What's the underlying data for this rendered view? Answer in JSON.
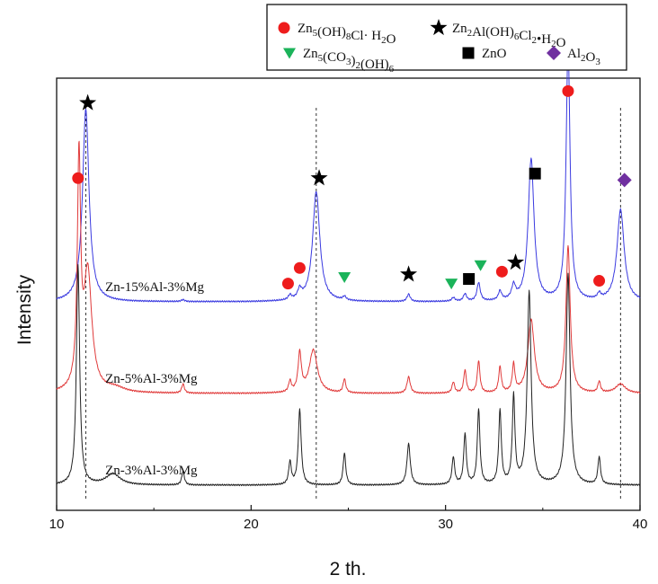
{
  "chart_data": {
    "type": "line",
    "title": "",
    "xlabel": "2 th.",
    "ylabel": "Intensity",
    "xlim": [
      10,
      40
    ],
    "xticks": [
      10,
      20,
      30,
      40
    ],
    "grid": false,
    "legend_position": "top-right",
    "legend": [
      {
        "marker": "circle",
        "color": "#ee1c1c",
        "parts": [
          [
            "Zn",
            ""
          ],
          [
            "5",
            "sub"
          ],
          [
            "(OH)",
            ""
          ],
          [
            "8",
            "sub"
          ],
          [
            "Cl·  H",
            ""
          ],
          [
            "2",
            "sub"
          ],
          [
            "O",
            ""
          ]
        ]
      },
      {
        "marker": "star",
        "color": "#000000",
        "parts": [
          [
            "Zn",
            ""
          ],
          [
            "2",
            "sub"
          ],
          [
            "Al(OH)",
            ""
          ],
          [
            "6",
            "sub"
          ],
          [
            "Cl",
            ""
          ],
          [
            "2",
            "sub"
          ],
          [
            "•H",
            ""
          ],
          [
            "2",
            "sub"
          ],
          [
            "O",
            ""
          ]
        ]
      },
      {
        "marker": "triangle",
        "color": "#1bb35a",
        "parts": [
          [
            "Zn",
            ""
          ],
          [
            "5",
            "sub"
          ],
          [
            "(CO",
            ""
          ],
          [
            "3",
            "sub"
          ],
          [
            ")",
            ""
          ],
          [
            "2",
            "sub"
          ],
          [
            "(OH)",
            ""
          ],
          [
            "6",
            "sub"
          ]
        ]
      },
      {
        "marker": "square",
        "color": "#000000",
        "parts": [
          [
            "ZnO",
            ""
          ]
        ]
      },
      {
        "marker": "diamond",
        "color": "#7030a0",
        "parts": [
          [
            "Al",
            ""
          ],
          [
            "2",
            "sub"
          ],
          [
            "O",
            ""
          ],
          [
            "3",
            "sub"
          ]
        ]
      }
    ],
    "series": [
      {
        "name": "Zn-15%Al-3%Mg",
        "color": "#3a3ae0",
        "baseline": 1.0,
        "wiggle": 0.006,
        "peaks": [
          [
            11.5,
            2.1,
            0.2
          ],
          [
            16.5,
            0.02,
            0.1
          ],
          [
            22.0,
            0.05,
            0.1
          ],
          [
            22.5,
            0.1,
            0.12
          ],
          [
            23.35,
            1.2,
            0.22
          ],
          [
            24.8,
            0.04,
            0.1
          ],
          [
            28.1,
            0.08,
            0.1
          ],
          [
            30.4,
            0.04,
            0.1
          ],
          [
            31.0,
            0.08,
            0.1
          ],
          [
            31.7,
            0.2,
            0.1
          ],
          [
            32.8,
            0.1,
            0.1
          ],
          [
            33.5,
            0.15,
            0.12
          ],
          [
            34.4,
            1.55,
            0.18
          ],
          [
            36.3,
            2.8,
            0.12
          ],
          [
            37.9,
            0.06,
            0.1
          ],
          [
            39.0,
            1.0,
            0.22
          ]
        ]
      },
      {
        "name": "Zn-5%Al-3%Mg",
        "color": "#e03a3a",
        "baseline": 0.0,
        "wiggle": 0.006,
        "peaks": [
          [
            11.15,
            2.45,
            0.1
          ],
          [
            11.6,
            1.3,
            0.25
          ],
          [
            13.0,
            0.05,
            0.6
          ],
          [
            16.5,
            0.1,
            0.08
          ],
          [
            22.0,
            0.12,
            0.08
          ],
          [
            22.5,
            0.42,
            0.1
          ],
          [
            23.2,
            0.47,
            0.25
          ],
          [
            24.8,
            0.15,
            0.08
          ],
          [
            28.1,
            0.18,
            0.1
          ],
          [
            30.4,
            0.12,
            0.08
          ],
          [
            31.0,
            0.25,
            0.08
          ],
          [
            31.7,
            0.35,
            0.08
          ],
          [
            32.8,
            0.28,
            0.08
          ],
          [
            33.5,
            0.3,
            0.08
          ],
          [
            34.4,
            0.8,
            0.2
          ],
          [
            36.3,
            1.6,
            0.13
          ],
          [
            37.9,
            0.12,
            0.08
          ],
          [
            39.0,
            0.1,
            0.3
          ]
        ]
      },
      {
        "name": "Zn-3%Al-3%Mg",
        "color": "#222222",
        "baseline": -1.0,
        "wiggle": 0.006,
        "peaks": [
          [
            11.1,
            2.4,
            0.1
          ],
          [
            12.9,
            0.12,
            0.45
          ],
          [
            16.5,
            0.15,
            0.08
          ],
          [
            22.0,
            0.25,
            0.08
          ],
          [
            22.5,
            0.82,
            0.09
          ],
          [
            24.8,
            0.35,
            0.08
          ],
          [
            28.1,
            0.45,
            0.1
          ],
          [
            30.4,
            0.3,
            0.08
          ],
          [
            31.0,
            0.55,
            0.08
          ],
          [
            31.7,
            0.82,
            0.08
          ],
          [
            32.8,
            0.8,
            0.08
          ],
          [
            33.5,
            0.95,
            0.08
          ],
          [
            34.3,
            2.1,
            0.12
          ],
          [
            36.3,
            2.3,
            0.12
          ],
          [
            37.9,
            0.3,
            0.08
          ]
        ]
      }
    ],
    "phase_markers": [
      {
        "phase": "circle",
        "x": 11.1,
        "level": 2.35
      },
      {
        "phase": "star",
        "x": 11.6,
        "level": 3.17
      },
      {
        "phase": "star",
        "x": 23.5,
        "level": 2.35
      },
      {
        "phase": "circle",
        "x": 21.9,
        "level": 1.2
      },
      {
        "phase": "circle",
        "x": 22.5,
        "level": 1.37
      },
      {
        "phase": "triangle",
        "x": 24.8,
        "level": 1.27
      },
      {
        "phase": "star",
        "x": 28.1,
        "level": 1.3
      },
      {
        "phase": "triangle",
        "x": 30.3,
        "level": 1.2
      },
      {
        "phase": "square",
        "x": 31.2,
        "level": 1.25
      },
      {
        "phase": "triangle",
        "x": 31.8,
        "level": 1.4
      },
      {
        "phase": "star",
        "x": 33.6,
        "level": 1.43
      },
      {
        "phase": "circle",
        "x": 32.9,
        "level": 1.33
      },
      {
        "phase": "square",
        "x": 34.6,
        "level": 2.4
      },
      {
        "phase": "circle",
        "x": 36.3,
        "level": 3.3
      },
      {
        "phase": "circle",
        "x": 37.9,
        "level": 1.23
      },
      {
        "phase": "diamond",
        "x": 39.2,
        "level": 2.33
      }
    ],
    "reference_lines": [
      11.5,
      23.35,
      39.0
    ]
  }
}
